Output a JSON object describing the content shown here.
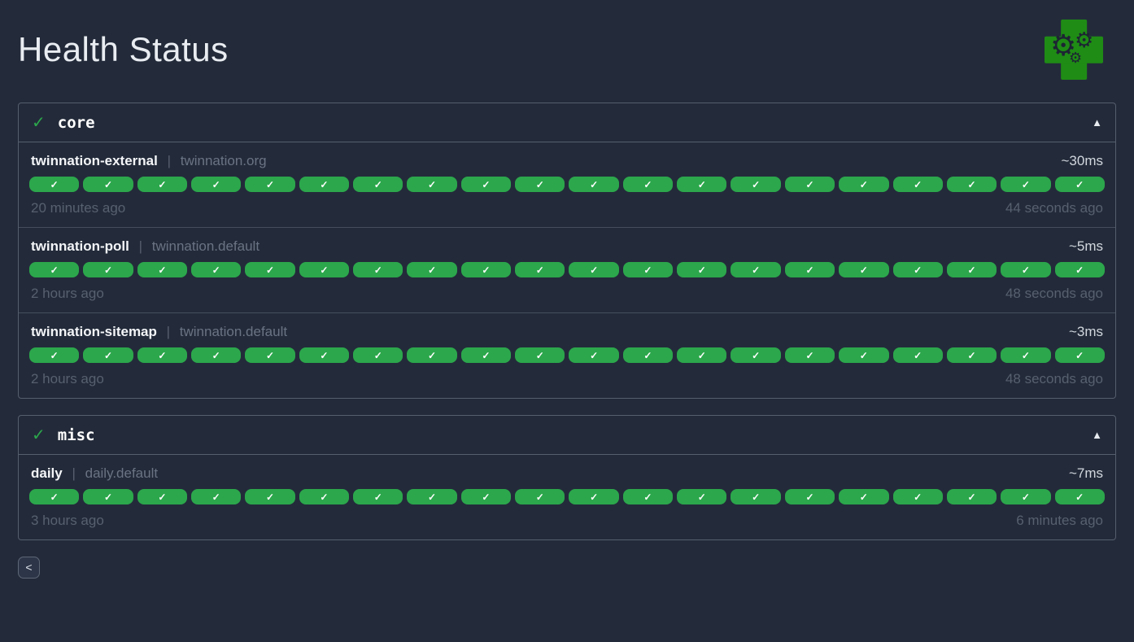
{
  "colors": {
    "background": "#232b3a",
    "success": "#2ca74c",
    "logo_green": "#1f8c15"
  },
  "header": {
    "title": "Health Status",
    "logo_icon": "health-cross-with-gears"
  },
  "icons": {
    "group_status_check": "✓",
    "badge_check": "✓",
    "collapse_arrow": "▲",
    "separator": "|",
    "gear": "⚙"
  },
  "groups": [
    {
      "name": "core",
      "status": "healthy",
      "services": [
        {
          "name": "twinnation-external",
          "subtitle": "twinnation.org",
          "response_time": "~30ms",
          "oldest_result": "20 minutes ago",
          "newest_result": "44 seconds ago",
          "results": {
            "count": 20,
            "status": "success"
          }
        },
        {
          "name": "twinnation-poll",
          "subtitle": "twinnation.default",
          "response_time": "~5ms",
          "oldest_result": "2 hours ago",
          "newest_result": "48 seconds ago",
          "results": {
            "count": 20,
            "status": "success"
          }
        },
        {
          "name": "twinnation-sitemap",
          "subtitle": "twinnation.default",
          "response_time": "~3ms",
          "oldest_result": "2 hours ago",
          "newest_result": "48 seconds ago",
          "results": {
            "count": 20,
            "status": "success"
          }
        }
      ]
    },
    {
      "name": "misc",
      "status": "healthy",
      "services": [
        {
          "name": "daily",
          "subtitle": "daily.default",
          "response_time": "~7ms",
          "oldest_result": "3 hours ago",
          "newest_result": "6 minutes ago",
          "results": {
            "count": 20,
            "status": "success"
          }
        }
      ]
    }
  ],
  "footer": {
    "back_label": "<"
  }
}
